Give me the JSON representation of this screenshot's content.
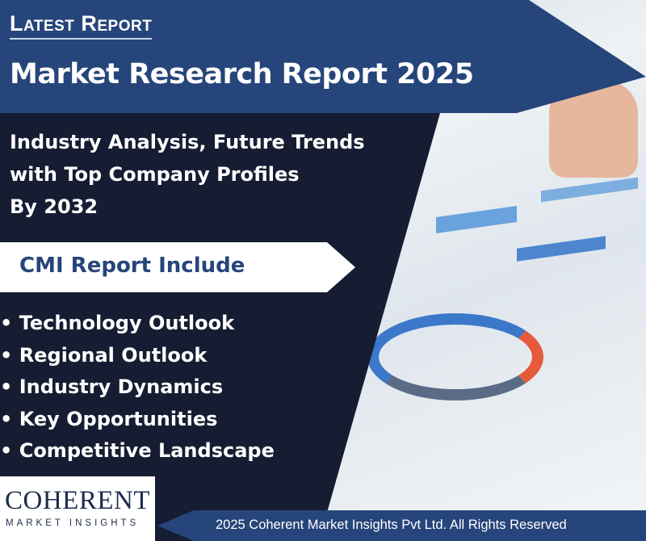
{
  "header": {
    "eyebrow": "Latest Report",
    "title": "Market Research Report 2025"
  },
  "subtitle": {
    "lines": [
      "Industry Analysis, Future Trends",
      "with Top Company Profiles",
      "By  2032"
    ]
  },
  "includes": {
    "heading": "CMI Report Include",
    "items": [
      "Technology Outlook",
      "Regional Outlook",
      "Industry Dynamics",
      "Key Opportunities",
      "Competitive Landscape"
    ]
  },
  "logo": {
    "name": "COHERENT",
    "tagline": "MARKET INSIGHTS"
  },
  "footer": {
    "copyright": "2025 Coherent Market Insights Pvt Ltd. All Rights Reserved"
  },
  "colors": {
    "navy": "#161d33",
    "blue": "#26457a",
    "white": "#ffffff"
  }
}
